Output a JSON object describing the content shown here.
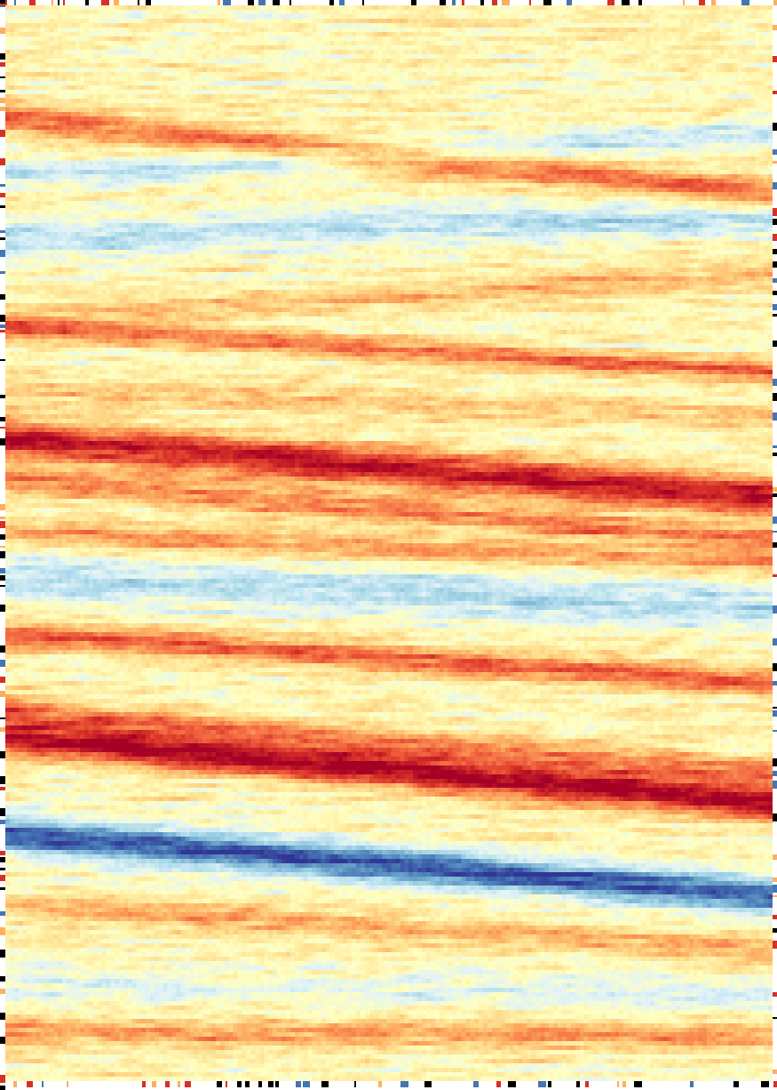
{
  "chart_data": {
    "type": "heatmap",
    "title": "",
    "xlabel": "",
    "ylabel": "",
    "grid": false,
    "legend": "none",
    "n_cols": 175,
    "n_rows": 242,
    "value_range": [
      -1,
      1
    ],
    "colormap": [
      "#313695",
      "#4575b4",
      "#74add1",
      "#abd9e9",
      "#e0f3f8",
      "#ffffbf",
      "#fee090",
      "#fdae61",
      "#f46d43",
      "#d73027",
      "#a50026"
    ],
    "bands": [
      {
        "row_left": 25,
        "row_right": 42,
        "amplitude": 0.55,
        "width": 3.5
      },
      {
        "row_left": 38,
        "row_right": 28,
        "amplitude": -0.35,
        "width": 3.0
      },
      {
        "row_left": 52,
        "row_right": 47,
        "amplitude": -0.4,
        "width": 4.0
      },
      {
        "row_left": 70,
        "row_right": 60,
        "amplitude": 0.3,
        "width": 3.0
      },
      {
        "row_left": 72,
        "row_right": 82,
        "amplitude": 0.55,
        "width": 2.5
      },
      {
        "row_left": 86,
        "row_right": 92,
        "amplitude": 0.25,
        "width": 3.0
      },
      {
        "row_left": 97,
        "row_right": 110,
        "amplitude": 0.85,
        "width": 4.5
      },
      {
        "row_left": 106,
        "row_right": 120,
        "amplitude": 0.5,
        "width": 3.0
      },
      {
        "row_left": 118,
        "row_right": 125,
        "amplitude": 0.4,
        "width": 3.0
      },
      {
        "row_left": 128,
        "row_right": 135,
        "amplitude": -0.4,
        "width": 5.0
      },
      {
        "row_left": 141,
        "row_right": 152,
        "amplitude": 0.6,
        "width": 3.0
      },
      {
        "row_left": 158,
        "row_right": 172,
        "amplitude": 0.5,
        "width": 3.0
      },
      {
        "row_left": 164,
        "row_right": 179,
        "amplitude": 0.95,
        "width": 4.0
      },
      {
        "row_left": 186,
        "row_right": 200,
        "amplitude": -0.95,
        "width": 4.0
      },
      {
        "row_left": 202,
        "row_right": 212,
        "amplitude": 0.35,
        "width": 3.0
      },
      {
        "row_left": 220,
        "row_right": 222,
        "amplitude": -0.2,
        "width": 4.0
      },
      {
        "row_left": 230,
        "row_right": 232,
        "amplitude": 0.4,
        "width": 3.0
      }
    ],
    "baseline": 0.05,
    "noise": 0.18
  }
}
